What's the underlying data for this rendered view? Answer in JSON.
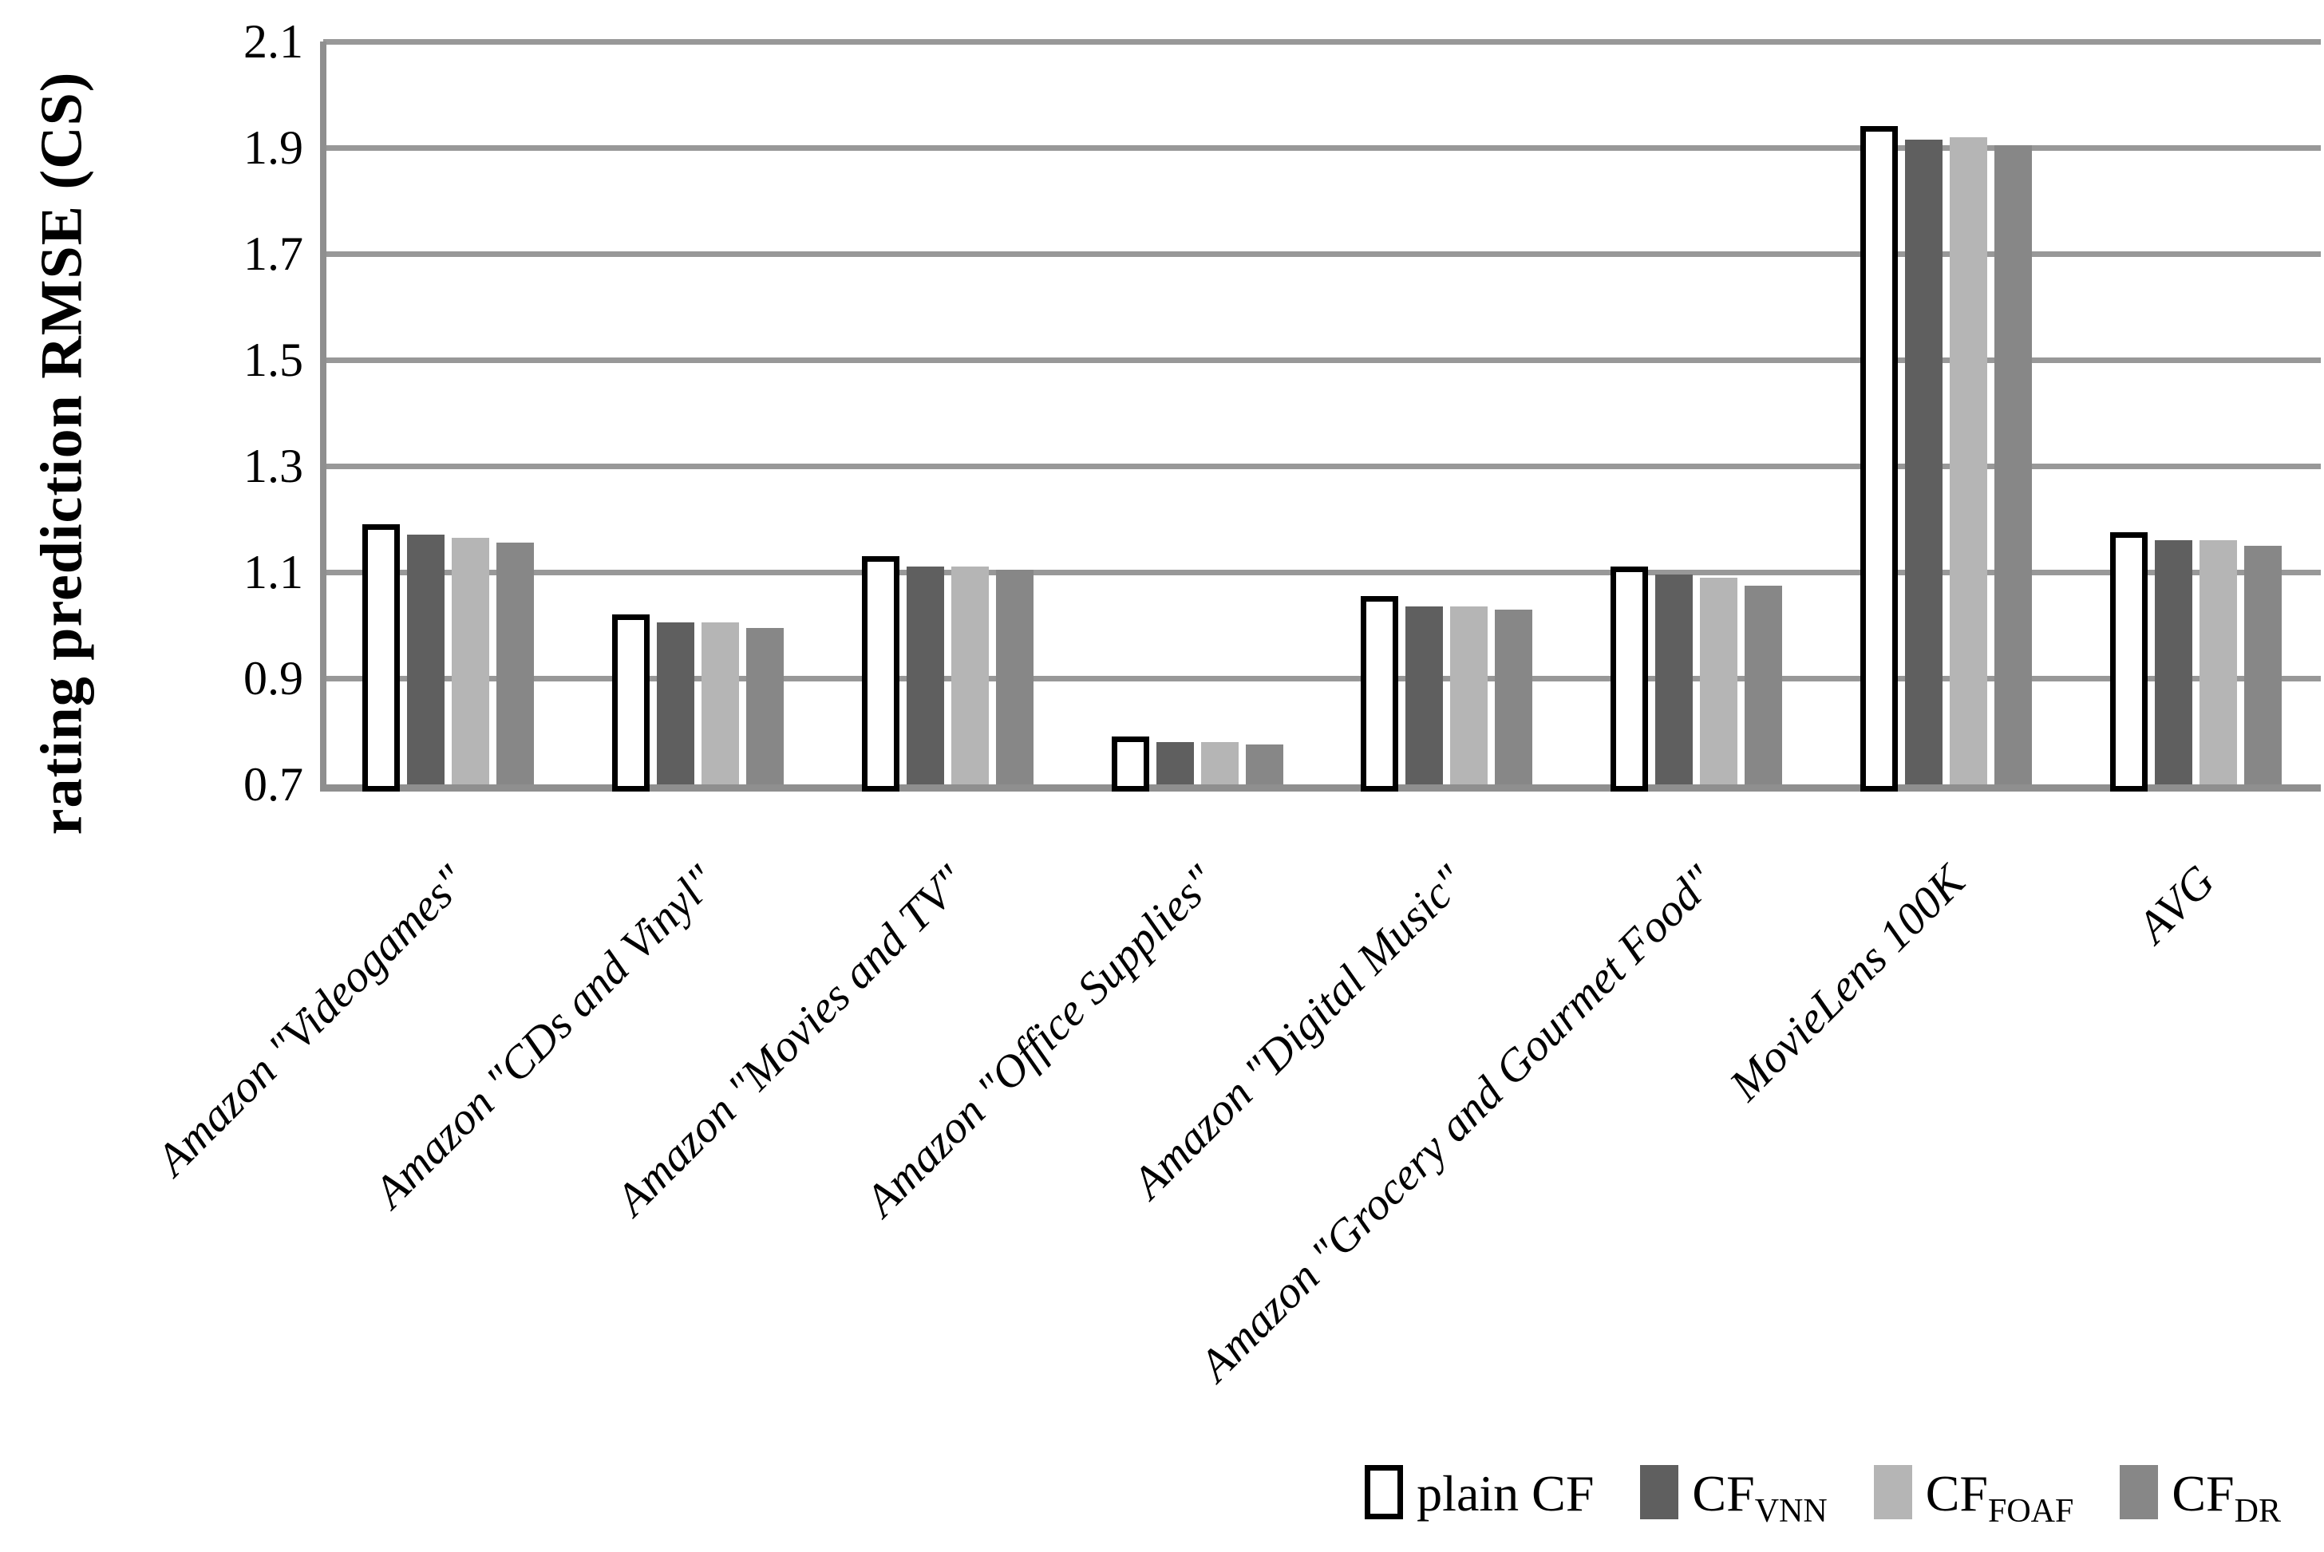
{
  "chart_data": {
    "type": "bar",
    "title": "",
    "ylabel": "rating prediction RMSE (CS)",
    "xlabel": "",
    "ylim": [
      0.7,
      2.1
    ],
    "ytick_step": 0.2,
    "ytick_labels": [
      "0.7",
      "0.9",
      "1.1",
      "1.3",
      "1.5",
      "1.7",
      "1.9",
      "2.1"
    ],
    "grid": "horizontal",
    "legend_position": "bottom-right",
    "categories": [
      "Amazon \"Videogames\"",
      "Amazon \"CDs and Vinyl\"",
      "Amazon \"Movies and TV\"",
      "Amazon \"Office Supplies\"",
      "Amazon \"Digital Music\"",
      "Amazon \"Grocery and Gourmet Food\"",
      "MovieLens 100K",
      "AVG"
    ],
    "series": [
      {
        "name": "plain CF",
        "label_base": "plain CF",
        "label_sub": "",
        "fill": "#ffffff",
        "border": "#000000",
        "values": [
          1.19,
          1.02,
          1.13,
          0.79,
          1.055,
          1.11,
          1.94,
          1.175
        ]
      },
      {
        "name": "CF VNN",
        "label_base": "CF",
        "label_sub": "VNN",
        "fill": "#5f5f5f",
        "border": null,
        "values": [
          1.17,
          1.005,
          1.11,
          0.78,
          1.035,
          1.095,
          1.915,
          1.16
        ]
      },
      {
        "name": "CF FOAF",
        "label_base": "CF",
        "label_sub": "FOAF",
        "fill": "#b5b5b5",
        "border": null,
        "values": [
          1.165,
          1.005,
          1.11,
          0.78,
          1.035,
          1.09,
          1.92,
          1.16
        ]
      },
      {
        "name": "CF DR",
        "label_base": "CF",
        "label_sub": "DR",
        "fill": "#878787",
        "border": null,
        "values": [
          1.155,
          0.995,
          1.105,
          0.775,
          1.03,
          1.075,
          1.905,
          1.15
        ]
      }
    ],
    "colors": {
      "grid": "#989898",
      "axis": "#8f8f8f",
      "plain_border": "#000000"
    }
  }
}
